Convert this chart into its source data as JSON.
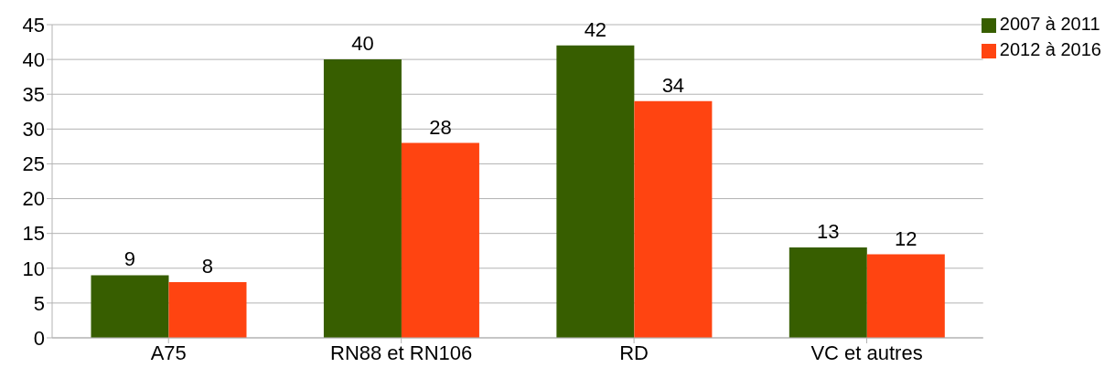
{
  "chart_data": {
    "type": "bar",
    "categories": [
      "A75",
      "RN88 et RN106",
      "RD",
      "VC et autres"
    ],
    "series": [
      {
        "name": "2007 à 2011",
        "color": "#375e00",
        "values": [
          9,
          40,
          42,
          13
        ]
      },
      {
        "name": "2012 à 2016",
        "color": "#ff4411",
        "values": [
          8,
          28,
          34,
          12
        ]
      }
    ],
    "ylim": [
      0,
      45
    ],
    "yticks": [
      0,
      5,
      10,
      15,
      20,
      25,
      30,
      35,
      40,
      45
    ],
    "grid": "y",
    "legend": "top right",
    "data_labels": true
  }
}
